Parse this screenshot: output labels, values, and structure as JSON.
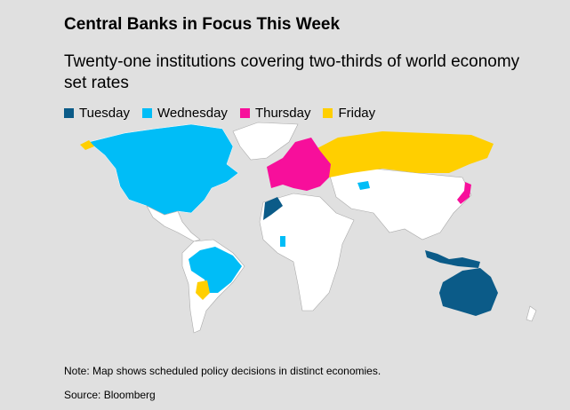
{
  "title": "Central Banks in Focus This Week",
  "subtitle": "Twenty-one institutions covering two-thirds of world economy set rates",
  "legend": [
    {
      "label": "Tuesday",
      "color": "#0b5b88"
    },
    {
      "label": "Wednesday",
      "color": "#00bdf7"
    },
    {
      "label": "Thursday",
      "color": "#f70f9b"
    },
    {
      "label": "Friday",
      "color": "#ffcf00"
    }
  ],
  "map": {
    "regions": [
      {
        "name": "United States & Canada",
        "day": "Wednesday"
      },
      {
        "name": "Brazil",
        "day": "Wednesday"
      },
      {
        "name": "Ghana",
        "day": "Wednesday"
      },
      {
        "name": "Alaska-adjacent (Russia far east)",
        "day": "Friday"
      },
      {
        "name": "Russia",
        "day": "Friday"
      },
      {
        "name": "Paraguay",
        "day": "Friday"
      },
      {
        "name": "Europe",
        "day": "Thursday"
      },
      {
        "name": "Japan",
        "day": "Thursday"
      },
      {
        "name": "Morocco",
        "day": "Tuesday"
      },
      {
        "name": "Indonesia",
        "day": "Tuesday"
      },
      {
        "name": "Australia",
        "day": "Tuesday"
      }
    ]
  },
  "note": "Note: Map shows scheduled policy decisions in distinct economies.",
  "source": "Source: Bloomberg"
}
